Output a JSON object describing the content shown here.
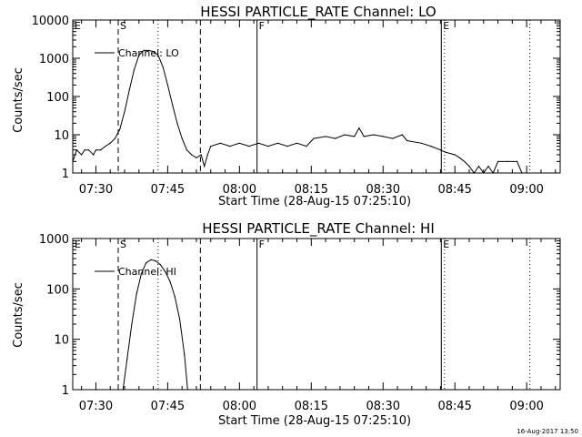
{
  "footer_timestamp": "16-Aug-2017 13:50",
  "colors": {
    "background": "#ffffff",
    "ink": "#000000"
  },
  "chart_data": [
    {
      "type": "line",
      "title": "HESSI PARTICLE_RATE Channel: LO",
      "xlabel": "Start Time (28-Aug-15 07:25:10)",
      "ylabel": "Counts/sec",
      "x_unit": "UT time 28-Aug-15",
      "xlim": [
        "07:25:10",
        "09:07:00"
      ],
      "ylim": [
        1,
        10000
      ],
      "yscale": "log",
      "grid": false,
      "legend": {
        "entries": [
          "Channel: LO"
        ],
        "placement": "top-left"
      },
      "xticks": [
        "07:30",
        "07:45",
        "08:00",
        "08:15",
        "08:30",
        "08:45",
        "09:00"
      ],
      "yticks": [
        "1",
        "10",
        "100",
        "1000",
        "10000"
      ],
      "markers": [
        {
          "label": "E",
          "time": "07:25:10",
          "style": "dashed"
        },
        {
          "label": "S",
          "time": "07:34:40",
          "style": "dashed"
        },
        {
          "label": "",
          "time": "07:43:00",
          "style": "dotted"
        },
        {
          "label": "",
          "time": "07:51:50",
          "style": "dashed"
        },
        {
          "label": "F",
          "time": "08:03:40",
          "style": "solid"
        },
        {
          "label": "E",
          "time": "08:42:10",
          "style": "solid"
        },
        {
          "label": "",
          "time": "08:42:50",
          "style": "dotted"
        },
        {
          "label": "",
          "time": "09:00:40",
          "style": "dotted"
        }
      ],
      "series": [
        {
          "name": "Channel: LO",
          "x": [
            "07:25:10",
            "07:26:00",
            "07:27:00",
            "07:27:40",
            "07:28:30",
            "07:29:30",
            "07:30:00",
            "07:31:00",
            "07:32:00",
            "07:33:00",
            "07:34:00",
            "07:35:00",
            "07:36:00",
            "07:37:00",
            "07:38:00",
            "07:39:00",
            "07:40:00",
            "07:41:00",
            "07:42:00",
            "07:43:00",
            "07:44:00",
            "07:45:00",
            "07:46:00",
            "07:47:00",
            "07:48:00",
            "07:49:00",
            "07:50:00",
            "07:51:00",
            "07:52:00",
            "07:52:40",
            "07:53:20",
            "07:54:00",
            "07:56:00",
            "07:58:00",
            "08:00:00",
            "08:02:00",
            "08:04:00",
            "08:06:00",
            "08:08:00",
            "08:10:00",
            "08:12:00",
            "08:14:00",
            "08:15:30",
            "08:18:00",
            "08:20:00",
            "08:22:00",
            "08:24:00",
            "08:25:00",
            "08:26:00",
            "08:28:00",
            "08:30:00",
            "08:32:00",
            "08:34:00",
            "08:35:00",
            "08:38:00",
            "08:40:00",
            "08:42:00",
            "08:43:00",
            "08:45:00",
            "08:46:00",
            "08:47:00",
            "08:48:00",
            "08:49:00",
            "08:50:00",
            "08:51:00",
            "08:52:00",
            "08:53:00",
            "08:54:00",
            "08:56:00",
            "08:58:00",
            "08:59:00",
            "09:00:00"
          ],
          "y": [
            2,
            4,
            3,
            4,
            4,
            3,
            4,
            4,
            5,
            6,
            8,
            14,
            40,
            150,
            500,
            1200,
            1600,
            1600,
            1500,
            1200,
            600,
            200,
            60,
            20,
            8,
            4,
            3,
            2.5,
            3,
            1.5,
            3,
            5,
            6,
            5,
            6,
            5,
            6,
            5,
            6,
            5,
            6,
            5,
            8,
            9,
            8,
            10,
            9,
            15,
            9,
            10,
            9,
            8,
            10,
            7,
            6,
            5,
            4,
            3.5,
            3,
            2.5,
            2,
            1.5,
            1,
            1.5,
            1,
            1.5,
            1,
            2,
            2,
            2,
            1,
            1
          ]
        }
      ]
    },
    {
      "type": "line",
      "title": "HESSI PARTICLE_RATE Channel: HI",
      "xlabel": "Start Time (28-Aug-15 07:25:10)",
      "ylabel": "Counts/sec",
      "x_unit": "UT time 28-Aug-15",
      "xlim": [
        "07:25:10",
        "09:07:00"
      ],
      "ylim": [
        1,
        1000
      ],
      "yscale": "log",
      "grid": false,
      "legend": {
        "entries": [
          "Channel: HI"
        ],
        "placement": "top-left"
      },
      "xticks": [
        "07:30",
        "07:45",
        "08:00",
        "08:15",
        "08:30",
        "08:45",
        "09:00"
      ],
      "yticks": [
        "1",
        "10",
        "100",
        "1000"
      ],
      "markers": [
        {
          "label": "E",
          "time": "07:25:10",
          "style": "dashed"
        },
        {
          "label": "S",
          "time": "07:34:40",
          "style": "dashed"
        },
        {
          "label": "",
          "time": "07:43:00",
          "style": "dotted"
        },
        {
          "label": "",
          "time": "07:51:50",
          "style": "dashed"
        },
        {
          "label": "F",
          "time": "08:03:40",
          "style": "solid"
        },
        {
          "label": "E",
          "time": "08:42:10",
          "style": "solid"
        },
        {
          "label": "",
          "time": "08:42:50",
          "style": "dotted"
        },
        {
          "label": "",
          "time": "09:00:40",
          "style": "dotted"
        }
      ],
      "series": [
        {
          "name": "Channel: HI",
          "x": [
            "07:35:40",
            "07:36:30",
            "07:37:30",
            "07:38:30",
            "07:39:30",
            "07:40:30",
            "07:41:30",
            "07:42:30",
            "07:43:30",
            "07:44:30",
            "07:45:30",
            "07:46:30",
            "07:47:30",
            "07:48:30",
            "07:49:10"
          ],
          "y": [
            1,
            4,
            20,
            80,
            200,
            330,
            380,
            360,
            300,
            220,
            140,
            70,
            25,
            5,
            1
          ]
        }
      ]
    }
  ]
}
